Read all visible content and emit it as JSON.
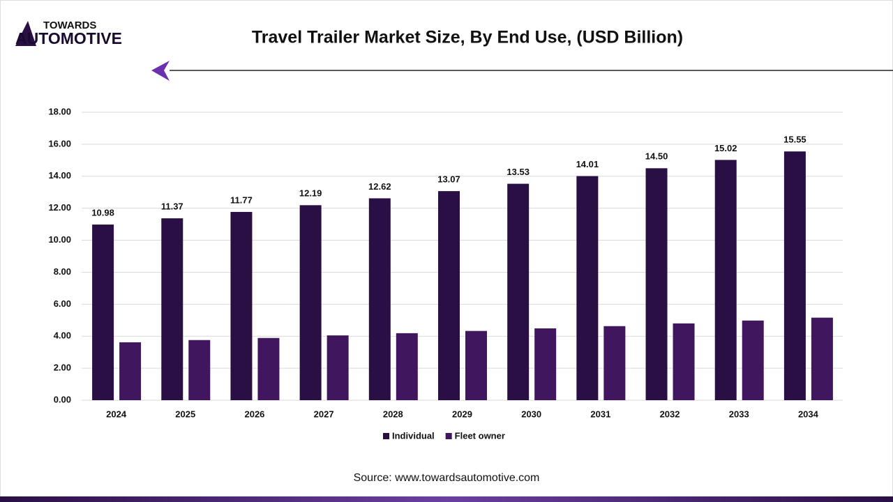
{
  "logo": {
    "line1": "TOWARDS",
    "line2": "AUTOMOTIVE"
  },
  "chart_data": {
    "type": "bar",
    "title": "Travel Trailer Market Size, By End Use, (USD Billion)",
    "source": "Source: www.towardsautomotive.com",
    "categories": [
      "2024",
      "2025",
      "2026",
      "2027",
      "2028",
      "2029",
      "2030",
      "2031",
      "2032",
      "2033",
      "2034"
    ],
    "series": [
      {
        "name": "Individual",
        "color": "#2a0f45",
        "values": [
          10.98,
          11.37,
          11.77,
          12.19,
          12.62,
          13.07,
          13.53,
          14.01,
          14.5,
          15.02,
          15.55
        ],
        "value_labels": [
          "10.98",
          "11.37",
          "11.77",
          "12.19",
          "12.62",
          "13.07",
          "13.53",
          "14.01",
          "14.50",
          "15.02",
          "15.55"
        ]
      },
      {
        "name": "Fleet owner",
        "color": "#40175f",
        "values": [
          3.62,
          3.76,
          3.89,
          4.05,
          4.19,
          4.33,
          4.49,
          4.63,
          4.8,
          4.98,
          5.16
        ]
      }
    ],
    "ylim": [
      0,
      18
    ],
    "yticks": [
      {
        "value": 0,
        "label": "0.00"
      },
      {
        "value": 2,
        "label": "2.00"
      },
      {
        "value": 4,
        "label": "4.00"
      },
      {
        "value": 6,
        "label": "6.00"
      },
      {
        "value": 8,
        "label": "8.00"
      },
      {
        "value": 10,
        "label": "10.00"
      },
      {
        "value": 12,
        "label": "12.00"
      },
      {
        "value": 14,
        "label": "14.00"
      },
      {
        "value": 16,
        "label": "16.00"
      },
      {
        "value": 18,
        "label": "18.00"
      }
    ],
    "grid": true,
    "legend": "bottom"
  }
}
